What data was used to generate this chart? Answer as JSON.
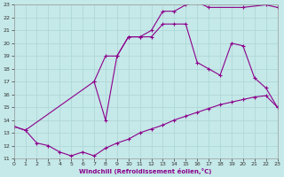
{
  "xlabel": "Windchill (Refroidissement éolien,°C)",
  "xlim": [
    0,
    23
  ],
  "ylim": [
    11,
    23
  ],
  "yticks": [
    11,
    12,
    13,
    14,
    15,
    16,
    17,
    18,
    19,
    20,
    21,
    22,
    23
  ],
  "xticks": [
    0,
    1,
    2,
    3,
    4,
    5,
    6,
    7,
    8,
    9,
    10,
    11,
    12,
    13,
    14,
    15,
    16,
    17,
    18,
    19,
    20,
    21,
    22,
    23
  ],
  "bg_color": "#c5e8e8",
  "grid_color": "#b0d8d8",
  "line_color": "#8b008b",
  "line1_x": [
    0,
    1,
    2,
    3,
    4,
    5,
    6,
    7,
    8,
    9,
    10,
    11,
    12,
    13,
    14,
    15,
    16,
    17,
    18,
    19,
    20,
    21,
    22,
    23
  ],
  "line1_y": [
    13.5,
    13.2,
    12.2,
    12.0,
    11.5,
    11.2,
    11.5,
    11.2,
    11.8,
    12.2,
    12.5,
    13.0,
    13.3,
    13.6,
    14.0,
    14.3,
    14.6,
    14.9,
    15.2,
    15.4,
    15.6,
    15.8,
    15.9,
    15.0
  ],
  "line2_x": [
    0,
    1,
    7,
    8,
    9,
    10,
    11,
    12,
    13,
    14,
    15,
    16,
    17,
    20,
    22,
    23
  ],
  "line2_y": [
    13.5,
    13.2,
    17.0,
    19.0,
    19.0,
    20.5,
    20.5,
    21.0,
    22.5,
    22.5,
    23.0,
    23.2,
    22.8,
    22.8,
    23.0,
    22.8
  ],
  "line3_x": [
    7,
    8,
    9,
    10,
    11,
    12,
    13,
    14,
    15,
    16,
    17,
    18,
    19,
    20,
    21,
    22,
    23
  ],
  "line3_y": [
    17.0,
    14.0,
    19.0,
    20.5,
    20.5,
    20.5,
    21.5,
    21.5,
    21.5,
    18.5,
    18.0,
    17.5,
    20.0,
    19.8,
    17.3,
    16.5,
    15.0
  ]
}
